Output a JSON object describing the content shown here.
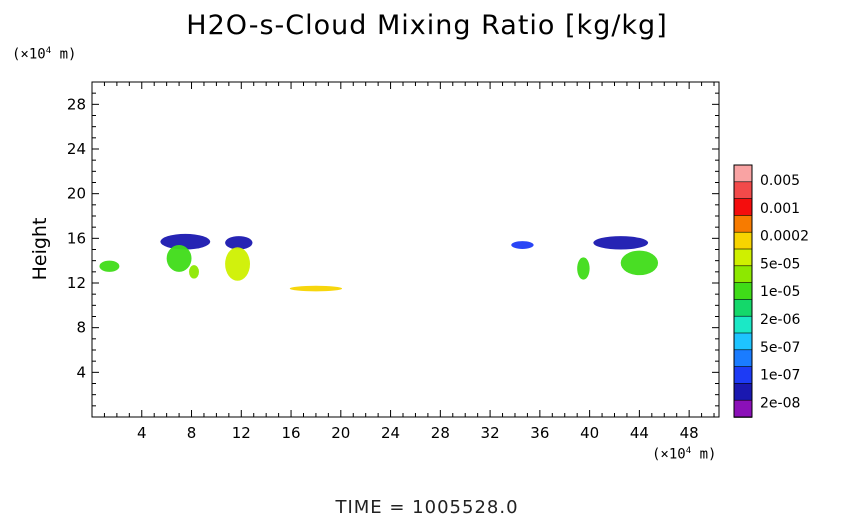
{
  "chart_data": {
    "type": "heatmap",
    "title": "H2O-s-Cloud Mixing Ratio [kg/kg]",
    "ylabel": "Height",
    "x_unit_prefix": "(×10",
    "x_unit_exp": "4",
    "x_unit_suffix": " m)",
    "y_unit_prefix": "(×10",
    "y_unit_exp": "4",
    "y_unit_suffix": " m)",
    "xlim": [
      0,
      50.4
    ],
    "ylim": [
      0,
      30
    ],
    "x_ticks": [
      4,
      8,
      12,
      16,
      20,
      24,
      28,
      32,
      36,
      40,
      44,
      48
    ],
    "y_ticks": [
      4,
      8,
      12,
      16,
      20,
      24,
      28
    ],
    "colorbar": {
      "labels": [
        "0.005",
        "0.001",
        "0.0002",
        "5e-05",
        "1e-05",
        "2e-06",
        "5e-07",
        "1e-07",
        "2e-08"
      ],
      "colors_top_to_bottom": [
        "#f9a3a3",
        "#f24a4a",
        "#f40d0d",
        "#f77b00",
        "#f7d400",
        "#cff000",
        "#8de800",
        "#3fdc18",
        "#14d86a",
        "#1be8c6",
        "#1ec4ff",
        "#1a7cff",
        "#1d3bf5",
        "#1a18b0",
        "#8b10b8"
      ]
    },
    "regions": [
      {
        "name": "cloud-a",
        "x": 1.4,
        "y": 13.5,
        "rx": 0.8,
        "ry": 0.5,
        "color": "#3fdc18"
      },
      {
        "name": "cloud-b-top",
        "x": 7.5,
        "y": 15.7,
        "rx": 2.0,
        "ry": 0.7,
        "color": "#1a18b0"
      },
      {
        "name": "cloud-b-body",
        "x": 7.0,
        "y": 14.2,
        "rx": 1.0,
        "ry": 1.2,
        "color": "#3fdc18"
      },
      {
        "name": "cloud-b-tail",
        "x": 8.2,
        "y": 13.0,
        "rx": 0.4,
        "ry": 0.6,
        "color": "#8de800"
      },
      {
        "name": "cloud-c-top",
        "x": 11.8,
        "y": 15.6,
        "rx": 1.1,
        "ry": 0.6,
        "color": "#1a18b0"
      },
      {
        "name": "cloud-c-body",
        "x": 11.7,
        "y": 13.7,
        "rx": 1.0,
        "ry": 1.5,
        "color": "#cff000"
      },
      {
        "name": "cloud-d",
        "x": 18.0,
        "y": 11.5,
        "rx": 2.1,
        "ry": 0.25,
        "color": "#f7d400"
      },
      {
        "name": "cloud-e",
        "x": 34.6,
        "y": 15.4,
        "rx": 0.9,
        "ry": 0.35,
        "color": "#1d3bf5"
      },
      {
        "name": "cloud-f",
        "x": 39.5,
        "y": 13.3,
        "rx": 0.5,
        "ry": 1.0,
        "color": "#3fdc18"
      },
      {
        "name": "cloud-g-top",
        "x": 42.5,
        "y": 15.6,
        "rx": 2.2,
        "ry": 0.6,
        "color": "#1a18b0"
      },
      {
        "name": "cloud-g-body",
        "x": 44.0,
        "y": 13.8,
        "rx": 1.5,
        "ry": 1.1,
        "color": "#3fdc18"
      }
    ]
  },
  "footer": {
    "time_text": "TIME = 1005528.0"
  }
}
